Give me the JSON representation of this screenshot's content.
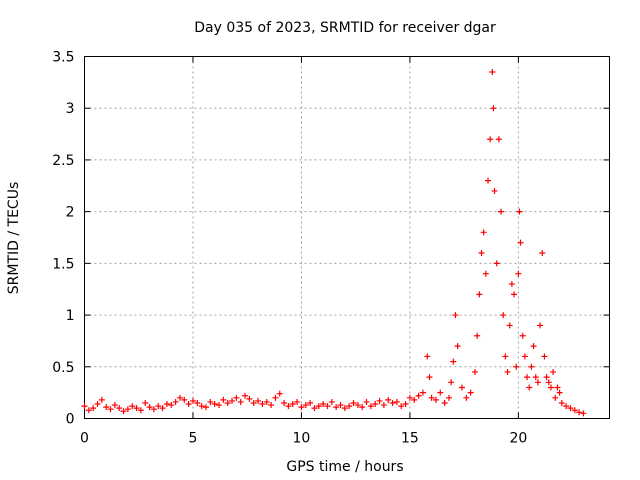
{
  "chart_data": {
    "type": "scatter",
    "title": "Day 035 of 2023, SRMTID for receiver dgar",
    "xlabel": "GPS time / hours",
    "ylabel": "SRMTID / TECUs",
    "xlim": [
      0,
      24.2
    ],
    "ylim": [
      0,
      3.5
    ],
    "x_ticks": [
      0,
      5,
      10,
      15,
      20
    ],
    "x_tick_labels": [
      "0",
      "5",
      "10",
      "15",
      "20"
    ],
    "y_ticks": [
      0,
      0.5,
      1,
      1.5,
      2,
      2.5,
      3,
      3.5
    ],
    "y_tick_labels": [
      "0",
      "0.5",
      "1",
      "1.5",
      "2",
      "2.5",
      "3",
      "3.5"
    ],
    "grid": true,
    "marker": "+",
    "series": [
      {
        "name": "SRMTID",
        "color": "#ff0000",
        "x": [
          0.0,
          0.2,
          0.4,
          0.6,
          0.8,
          1.0,
          1.2,
          1.4,
          1.6,
          1.8,
          2.0,
          2.2,
          2.4,
          2.6,
          2.8,
          3.0,
          3.2,
          3.4,
          3.6,
          3.8,
          4.0,
          4.2,
          4.4,
          4.6,
          4.8,
          5.0,
          5.2,
          5.4,
          5.6,
          5.8,
          6.0,
          6.2,
          6.4,
          6.6,
          6.8,
          7.0,
          7.2,
          7.4,
          7.6,
          7.8,
          8.0,
          8.2,
          8.4,
          8.6,
          8.8,
          9.0,
          9.2,
          9.4,
          9.6,
          9.8,
          10.0,
          10.2,
          10.4,
          10.6,
          10.8,
          11.0,
          11.2,
          11.4,
          11.6,
          11.8,
          12.0,
          12.2,
          12.4,
          12.6,
          12.8,
          13.0,
          13.2,
          13.4,
          13.6,
          13.8,
          14.0,
          14.2,
          14.4,
          14.6,
          14.8,
          15.0,
          15.2,
          15.4,
          15.6,
          15.8,
          15.9,
          16.0,
          16.2,
          16.4,
          16.6,
          16.8,
          16.9,
          17.0,
          17.1,
          17.2,
          17.4,
          17.6,
          17.8,
          18.0,
          18.1,
          18.2,
          18.3,
          18.4,
          18.5,
          18.6,
          18.7,
          18.8,
          18.85,
          18.9,
          19.0,
          19.1,
          19.2,
          19.3,
          19.4,
          19.5,
          19.6,
          19.7,
          19.8,
          19.9,
          20.0,
          20.05,
          20.1,
          20.2,
          20.3,
          20.4,
          20.5,
          20.6,
          20.7,
          20.8,
          20.9,
          21.0,
          21.1,
          21.2,
          21.3,
          21.4,
          21.5,
          21.6,
          21.7,
          21.8,
          21.9,
          22.0,
          22.2,
          22.4,
          22.6,
          22.8,
          23.0
        ],
        "y": [
          0.12,
          0.08,
          0.1,
          0.14,
          0.18,
          0.11,
          0.09,
          0.13,
          0.1,
          0.07,
          0.09,
          0.12,
          0.1,
          0.08,
          0.15,
          0.11,
          0.09,
          0.12,
          0.1,
          0.14,
          0.13,
          0.16,
          0.2,
          0.18,
          0.14,
          0.17,
          0.15,
          0.12,
          0.11,
          0.16,
          0.14,
          0.13,
          0.18,
          0.15,
          0.17,
          0.2,
          0.16,
          0.22,
          0.19,
          0.15,
          0.17,
          0.14,
          0.16,
          0.13,
          0.2,
          0.24,
          0.15,
          0.12,
          0.14,
          0.16,
          0.11,
          0.13,
          0.15,
          0.1,
          0.12,
          0.14,
          0.12,
          0.16,
          0.11,
          0.13,
          0.1,
          0.12,
          0.15,
          0.13,
          0.11,
          0.16,
          0.12,
          0.14,
          0.17,
          0.13,
          0.18,
          0.15,
          0.16,
          0.12,
          0.14,
          0.2,
          0.18,
          0.22,
          0.25,
          0.6,
          0.4,
          0.2,
          0.18,
          0.25,
          0.15,
          0.2,
          0.35,
          0.55,
          1.0,
          0.7,
          0.3,
          0.2,
          0.25,
          0.45,
          0.8,
          1.2,
          1.6,
          1.8,
          1.4,
          2.3,
          2.7,
          3.35,
          3.0,
          2.2,
          1.5,
          2.7,
          2.0,
          1.0,
          0.6,
          0.45,
          0.9,
          1.3,
          1.2,
          0.5,
          1.4,
          2.0,
          1.7,
          0.8,
          0.6,
          0.4,
          0.3,
          0.5,
          0.7,
          0.4,
          0.35,
          0.9,
          1.6,
          0.6,
          0.4,
          0.35,
          0.3,
          0.45,
          0.2,
          0.3,
          0.25,
          0.15,
          0.12,
          0.1,
          0.08,
          0.06,
          0.05
        ]
      }
    ]
  }
}
